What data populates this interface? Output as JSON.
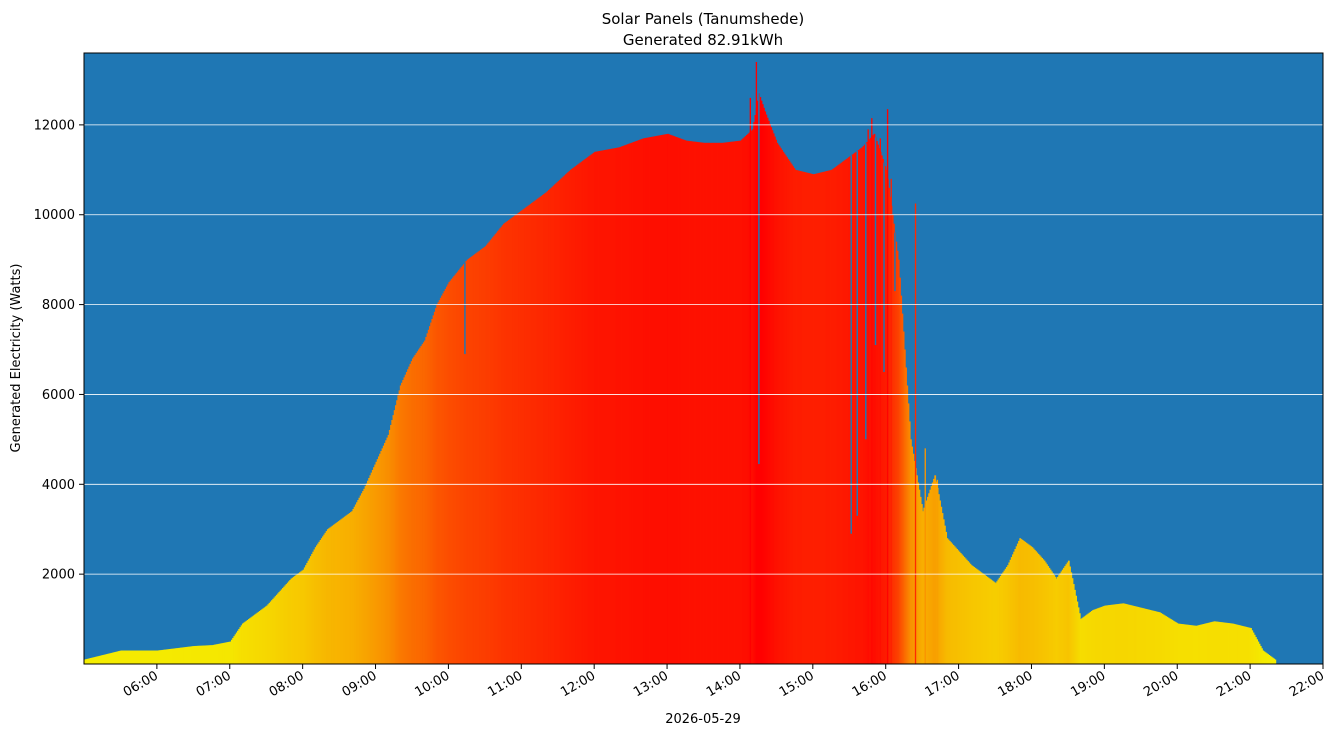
{
  "chart_data": {
    "type": "bar",
    "title": "Solar Panels (Tanumshede)",
    "subtitle": "Generated 82.91kWh",
    "xlabel": "2026-05-29",
    "ylabel": "Generated Electricity (Watts)",
    "x_range": [
      "05:00",
      "22:00"
    ],
    "ylim": [
      0,
      13600
    ],
    "y_ticks": [
      2000,
      4000,
      6000,
      8000,
      10000,
      12000
    ],
    "x_ticks": [
      "06:00",
      "07:00",
      "08:00",
      "09:00",
      "10:00",
      "11:00",
      "12:00",
      "13:00",
      "14:00",
      "15:00",
      "16:00",
      "17:00",
      "18:00",
      "19:00",
      "20:00",
      "21:00",
      "22:00"
    ],
    "grid": "horizontal",
    "colors": {
      "background": "#1f77b4",
      "grid": "#ffffff",
      "low": "#f5f000",
      "high": "#ff0000"
    },
    "power_profile": {
      "x": [
        "05:00",
        "05:15",
        "05:30",
        "05:45",
        "06:00",
        "06:15",
        "06:30",
        "06:45",
        "07:00",
        "07:10",
        "07:20",
        "07:30",
        "07:40",
        "07:50",
        "08:00",
        "08:10",
        "08:20",
        "08:30",
        "08:40",
        "08:50",
        "09:00",
        "09:10",
        "09:20",
        "09:30",
        "09:40",
        "09:50",
        "10:00",
        "10:15",
        "10:30",
        "10:45",
        "11:00",
        "11:20",
        "11:40",
        "12:00",
        "12:20",
        "12:40",
        "13:00",
        "13:15",
        "13:30",
        "13:45",
        "14:00",
        "14:10",
        "14:15",
        "14:20",
        "14:30",
        "14:45",
        "15:00",
        "15:15",
        "15:30",
        "15:40",
        "15:50",
        "16:00",
        "16:10",
        "16:20",
        "16:30",
        "16:40",
        "16:50",
        "17:00",
        "17:10",
        "17:20",
        "17:30",
        "17:40",
        "17:50",
        "18:00",
        "18:10",
        "18:20",
        "18:30",
        "18:40",
        "18:50",
        "19:00",
        "19:15",
        "19:30",
        "19:45",
        "20:00",
        "20:15",
        "20:30",
        "20:45",
        "21:00",
        "21:10",
        "21:20"
      ],
      "y": [
        100,
        200,
        300,
        300,
        300,
        350,
        400,
        420,
        500,
        900,
        1100,
        1300,
        1600,
        1900,
        2100,
        2600,
        3000,
        3200,
        3400,
        3900,
        4500,
        5100,
        6200,
        6800,
        7200,
        8000,
        8500,
        9000,
        9300,
        9800,
        10100,
        10500,
        11000,
        11400,
        11500,
        11700,
        11800,
        11650,
        11600,
        11600,
        11650,
        11900,
        12700,
        12300,
        11600,
        11000,
        10900,
        11000,
        11300,
        11500,
        11800,
        11000,
        9000,
        5000,
        3400,
        4200,
        2800,
        2500,
        2200,
        2000,
        1800,
        2200,
        2800,
        2600,
        2300,
        1900,
        2300,
        1000,
        1200,
        1300,
        1350,
        1250,
        1150,
        900,
        850,
        950,
        900,
        800,
        300,
        100
      ]
    },
    "spikes": [
      {
        "x": "14:08",
        "y": 12600
      },
      {
        "x": "14:13",
        "y": 13400
      },
      {
        "x": "14:17",
        "y": 12500
      },
      {
        "x": "15:40",
        "y": 11400
      },
      {
        "x": "15:45",
        "y": 11900
      },
      {
        "x": "15:48",
        "y": 12150
      },
      {
        "x": "15:55",
        "y": 11700
      },
      {
        "x": "16:01",
        "y": 12350
      },
      {
        "x": "16:04",
        "y": 10800
      },
      {
        "x": "16:24",
        "y": 10250
      },
      {
        "x": "16:32",
        "y": 4800
      },
      {
        "x": "16:42",
        "y": 4100
      }
    ],
    "dips": [
      {
        "x": "10:13",
        "y": 6900
      },
      {
        "x": "14:15",
        "y": 4450
      },
      {
        "x": "15:31",
        "y": 2900
      },
      {
        "x": "15:36",
        "y": 3300
      },
      {
        "x": "15:43",
        "y": 5000
      },
      {
        "x": "15:51",
        "y": 7100
      },
      {
        "x": "15:58",
        "y": 6500
      },
      {
        "x": "16:07",
        "y": 8300
      },
      {
        "x": "16:20",
        "y": 5600
      }
    ]
  }
}
